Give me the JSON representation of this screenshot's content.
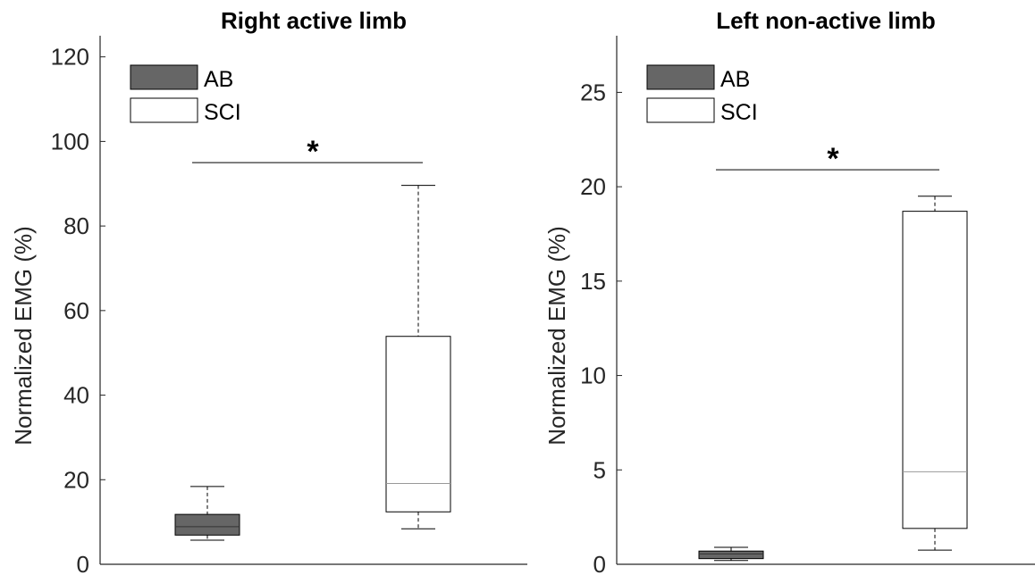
{
  "colors": {
    "ab_fill": "#666666",
    "sci_fill": "#ffffff",
    "axis": "#262626",
    "median_ab": "#333333",
    "median_sci": "#999999"
  },
  "chart_data": [
    {
      "type": "box",
      "title": "Right active limb",
      "ylabel": "Normalized EMG (%)",
      "ylim": [
        0,
        125
      ],
      "yticks": [
        0,
        20,
        40,
        60,
        80,
        100,
        120
      ],
      "legend": {
        "position": "top-left",
        "entries": [
          "AB",
          "SCI"
        ]
      },
      "series": [
        {
          "name": "AB",
          "whisker_low": 5.7,
          "q1": 6.9,
          "median": 8.9,
          "q3": 11.8,
          "whisker_high": 18.4
        },
        {
          "name": "SCI",
          "whisker_low": 8.4,
          "q1": 12.4,
          "median": 19.1,
          "q3": 53.9,
          "whisker_high": 89.6
        }
      ],
      "significance": {
        "label": "*",
        "y": 95
      }
    },
    {
      "type": "box",
      "title": "Left non-active limb",
      "ylabel": "Normalized EMG (%)",
      "ylim": [
        0,
        28
      ],
      "yticks": [
        0,
        5,
        10,
        15,
        20,
        25
      ],
      "legend": {
        "position": "top-left",
        "entries": [
          "AB",
          "SCI"
        ]
      },
      "series": [
        {
          "name": "AB",
          "whisker_low": 0.2,
          "q1": 0.3,
          "median": 0.55,
          "q3": 0.7,
          "whisker_high": 0.9
        },
        {
          "name": "SCI",
          "whisker_low": 0.75,
          "q1": 1.9,
          "median": 4.9,
          "q3": 18.7,
          "whisker_high": 19.5
        }
      ],
      "significance": {
        "label": "*",
        "y": 20.9
      }
    }
  ]
}
